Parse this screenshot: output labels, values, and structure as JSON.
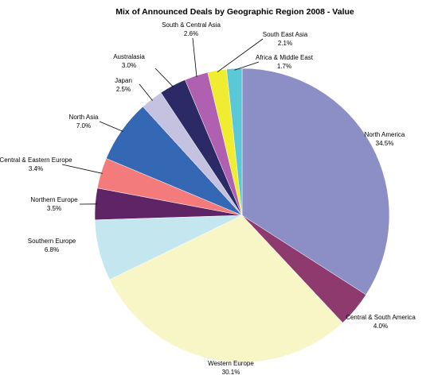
{
  "chart_data": {
    "type": "pie",
    "title": "Mix of Announced Deals by Geographic Region 2008 - Value",
    "categories": [
      "North America",
      "Central & South America",
      "Western Europe",
      "Southern Europe",
      "Northern Europe",
      "Central & Eastern Europe",
      "North Asia",
      "Japan",
      "Australasia",
      "South & Central Asia",
      "South East Asia",
      "Africa & Middle East"
    ],
    "values": [
      34.5,
      4.0,
      30.1,
      6.8,
      3.5,
      3.4,
      7.0,
      2.5,
      3.0,
      2.6,
      2.1,
      1.7
    ],
    "value_labels": [
      "34.5%",
      "4.0%",
      "30.1%",
      "6.8%",
      "3.5%",
      "3.4%",
      "7.0%",
      "2.5%",
      "3.0%",
      "2.6%",
      "2.1%",
      "1.7%"
    ],
    "colors": [
      "#8b8fc6",
      "#8e3a6e",
      "#f8f6c6",
      "#c3e6ef",
      "#5f2466",
      "#f47b7b",
      "#3467b4",
      "#c4c2e0",
      "#2b2a66",
      "#b060b0",
      "#f0ec30",
      "#5bc8d8"
    ]
  }
}
